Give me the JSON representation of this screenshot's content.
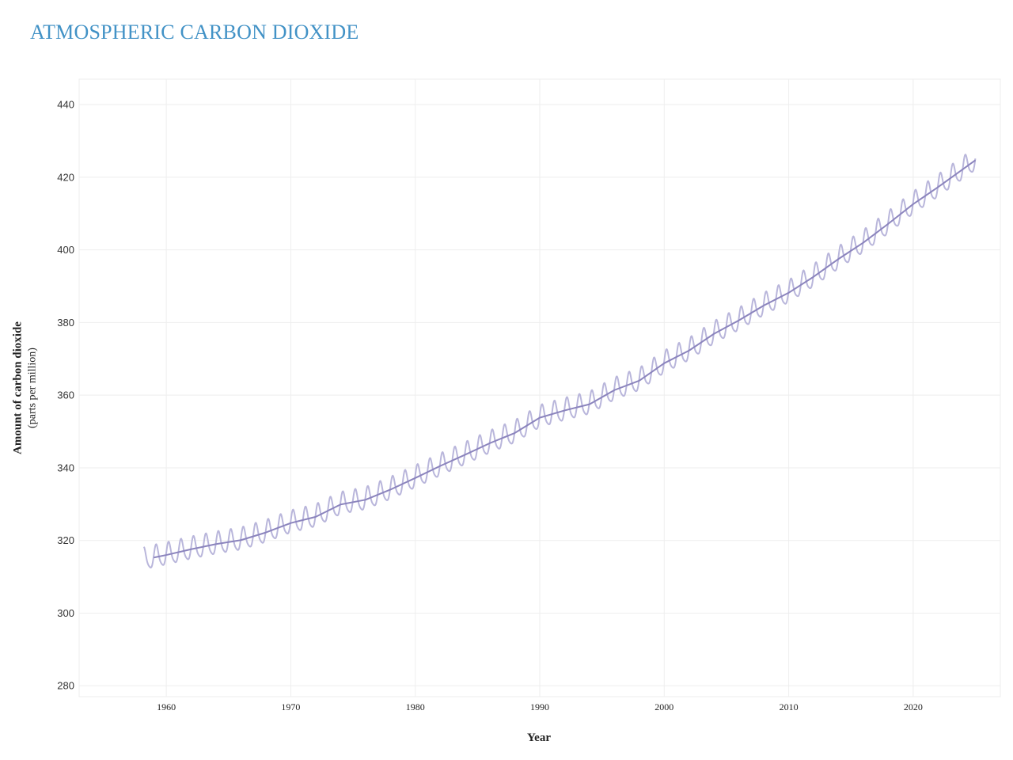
{
  "page": {
    "title": "ATMOSPHERIC CARBON DIOXIDE"
  },
  "chart_data": {
    "type": "line",
    "title": "ATMOSPHERIC CARBON DIOXIDE",
    "xlabel": "Year",
    "ylabel": "Amount of carbon dioxide",
    "ylabel_sub": "(parts per million)",
    "xlim": [
      1953,
      2027
    ],
    "ylim": [
      277,
      447
    ],
    "x_ticks": [
      1960,
      1970,
      1980,
      1990,
      2000,
      2010,
      2020
    ],
    "y_ticks": [
      280,
      300,
      320,
      340,
      360,
      380,
      400,
      420,
      440
    ],
    "grid": true,
    "colors": {
      "monthly": "#b9b6db",
      "trend": "#8b84bd",
      "grid": "#eeeeee",
      "title": "#4292c6"
    },
    "seasonal_amplitude_ppm": 3.0,
    "series": [
      {
        "kind": "monthly",
        "x_range": [
          1958.2,
          2025.0
        ],
        "note_values": "monthly values oscillate around the trend with seasonal cycle"
      },
      {
        "kind": "trend",
        "x": [
          1959,
          1960,
          1962,
          1964,
          1966,
          1968,
          1970,
          1972,
          1974,
          1976,
          1978,
          1980,
          1982,
          1984,
          1986,
          1988,
          1990,
          1992,
          1994,
          1996,
          1998,
          2000,
          2002,
          2004,
          2006,
          2008,
          2010,
          2012,
          2014,
          2016,
          2018,
          2020,
          2022,
          2025
        ],
        "values": [
          315.3,
          316.0,
          317.6,
          319.0,
          320.1,
          322.2,
          324.8,
          326.5,
          329.9,
          331.2,
          334.0,
          337.2,
          340.5,
          343.6,
          346.8,
          349.6,
          353.8,
          355.8,
          357.5,
          361.4,
          364.0,
          368.8,
          372.3,
          376.9,
          380.6,
          384.7,
          388.2,
          392.6,
          397.5,
          402.0,
          407.2,
          412.6,
          417.3,
          424.7
        ]
      }
    ]
  }
}
